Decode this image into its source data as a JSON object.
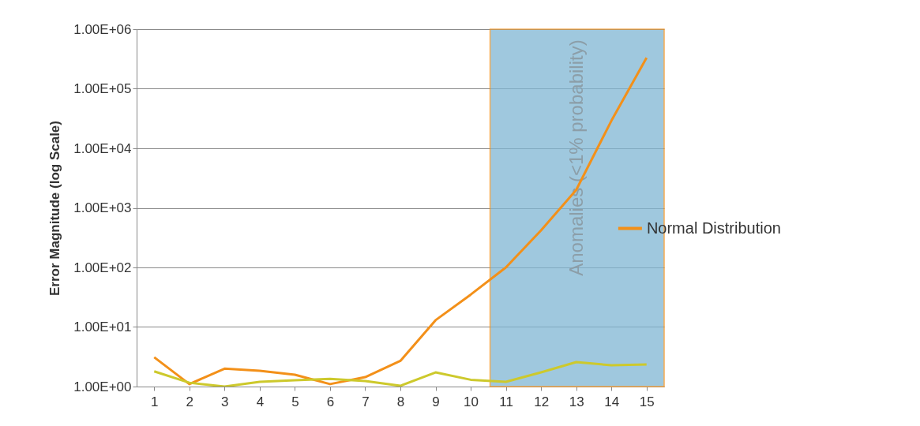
{
  "chart_data": {
    "type": "line",
    "ylabel": "Error Magnitude (log Scale)",
    "log": "y",
    "grid": "y",
    "legend": "right",
    "line_style": "solid",
    "marker": "none",
    "x": [
      1,
      2,
      3,
      4,
      5,
      6,
      7,
      8,
      9,
      10,
      11,
      12,
      13,
      14,
      15
    ],
    "xlim": [
      0.5,
      15.5
    ],
    "xticks": [
      1,
      2,
      3,
      4,
      5,
      6,
      7,
      8,
      9,
      10,
      11,
      12,
      13,
      14,
      15
    ],
    "ylim": [
      1,
      1000000
    ],
    "yticks": [
      {
        "value": 1,
        "label": "1.00E+00"
      },
      {
        "value": 10,
        "label": "1.00E+01"
      },
      {
        "value": 100,
        "label": "1.00E+02"
      },
      {
        "value": 1000,
        "label": "1.00E+03"
      },
      {
        "value": 10000,
        "label": "1.00E+04"
      },
      {
        "value": 100000,
        "label": "1.00E+05"
      },
      {
        "value": 1000000,
        "label": "1.00E+06"
      }
    ],
    "series": [
      {
        "name": "Normal Distribution",
        "color": "#f39019",
        "values": [
          3.1,
          1.1,
          2.0,
          1.84,
          1.58,
          1.1,
          1.44,
          2.7,
          13,
          35,
          100,
          420,
          2000,
          29000,
          330000
        ]
      },
      {
        "color": "#cdc92c",
        "values": [
          1.8,
          1.16,
          1.0,
          1.2,
          1.28,
          1.35,
          1.24,
          1.03,
          1.73,
          1.3,
          1.2,
          1.73,
          2.57,
          2.28,
          2.35
        ]
      }
    ],
    "bands": [
      {
        "axis": "x",
        "from": 10.55,
        "to": 15.5,
        "label": "Anomalies (<1% probability)",
        "color": "#7fb6d3"
      }
    ]
  }
}
